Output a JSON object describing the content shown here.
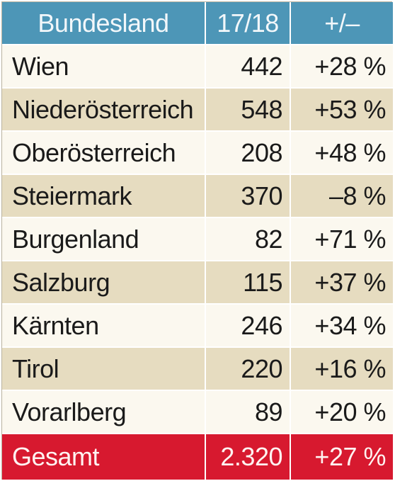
{
  "chart_data": {
    "type": "table",
    "columns": [
      "Bundesland",
      "17/18",
      "+/–"
    ],
    "rows": [
      {
        "name": "Wien",
        "value": "442",
        "change": "+28 %"
      },
      {
        "name": "Niederösterreich",
        "value": "548",
        "change": "+53 %"
      },
      {
        "name": "Oberösterreich",
        "value": "208",
        "change": "+48 %"
      },
      {
        "name": "Steiermark",
        "value": "370",
        "change": "–8 %"
      },
      {
        "name": "Burgenland",
        "value": "82",
        "change": "+71 %"
      },
      {
        "name": "Salzburg",
        "value": "115",
        "change": "+37 %"
      },
      {
        "name": "Kärnten",
        "value": "246",
        "change": "+34 %"
      },
      {
        "name": "Tirol",
        "value": "220",
        "change": "+16 %"
      },
      {
        "name": "Vorarlberg",
        "value": "89",
        "change": "+20 %"
      }
    ],
    "total": {
      "name": "Gesamt",
      "value": "2.320",
      "change": "+27 %"
    }
  },
  "colors": {
    "header": "#4d96b7",
    "row_light": "#fbf8ef",
    "row_dark": "#e6dcc0",
    "total": "#d7192f"
  }
}
